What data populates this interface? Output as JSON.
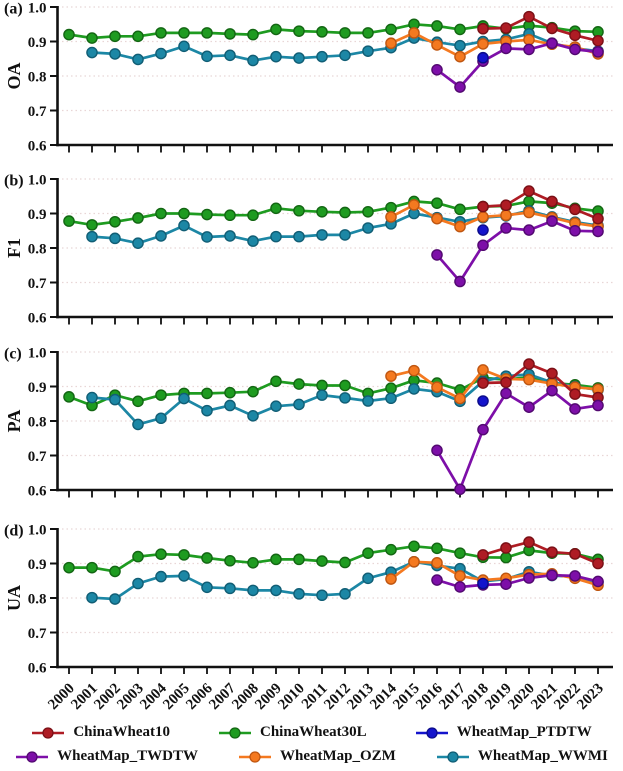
{
  "figure": {
    "background": "#ffffff",
    "axis_color": "#111111",
    "gridline_color": "#e8d6d6",
    "y_ticks": [
      "1.0",
      "0.9",
      "0.8",
      "0.7",
      "0.6"
    ],
    "years": [
      "2000",
      "2001",
      "2002",
      "2003",
      "2004",
      "2005",
      "2006",
      "2007",
      "2008",
      "2009",
      "2010",
      "2011",
      "2012",
      "2013",
      "2014",
      "2015",
      "2016",
      "2017",
      "2018",
      "2019",
      "2020",
      "2021",
      "2022",
      "2023"
    ]
  },
  "series_meta": [
    {
      "name": "ChinaWheat10",
      "color": "#ae1c24",
      "edge": "#7a1016"
    },
    {
      "name": "ChinaWheat30L",
      "color": "#1e9b20",
      "edge": "#136613"
    },
    {
      "name": "WheatMap_PTDTW",
      "color": "#1414cc",
      "edge": "#0c0c8a"
    },
    {
      "name": "WheatMap_TWDTW",
      "color": "#7d0fa8",
      "edge": "#520970"
    },
    {
      "name": "WheatMap_OZM",
      "color": "#f47920",
      "edge": "#bf5611"
    },
    {
      "name": "WheatMap_WWMI",
      "color": "#1c87a5",
      "edge": "#115e75"
    }
  ],
  "legend": {
    "rows": [
      [
        "ChinaWheat10",
        "ChinaWheat30L",
        "WheatMap_PTDTW"
      ],
      [
        "WheatMap_TWDTW",
        "WheatMap_OZM",
        "WheatMap_WWMI"
      ]
    ]
  },
  "draw_order": [
    "ChinaWheat30L",
    "WheatMap_WWMI",
    "WheatMap_OZM",
    "ChinaWheat10",
    "WheatMap_TWDTW",
    "WheatMap_PTDTW"
  ],
  "chart_data": [
    {
      "type": "line",
      "title": "(a)",
      "ylabel": "OA",
      "ylim": [
        0.6,
        1.0
      ],
      "grid": "dotted-horizontal",
      "legend_position": "bottom",
      "x": [
        2000,
        2001,
        2002,
        2003,
        2004,
        2005,
        2006,
        2007,
        2008,
        2009,
        2010,
        2011,
        2012,
        2013,
        2014,
        2015,
        2016,
        2017,
        2018,
        2019,
        2020,
        2021,
        2022,
        2023
      ],
      "series": [
        {
          "name": "ChinaWheat10",
          "values": [
            null,
            null,
            null,
            null,
            null,
            null,
            null,
            null,
            null,
            null,
            null,
            null,
            null,
            null,
            null,
            null,
            null,
            null,
            0.937,
            0.939,
            0.972,
            0.938,
            0.918,
            0.902
          ]
        },
        {
          "name": "ChinaWheat30L",
          "values": [
            0.92,
            0.91,
            0.915,
            0.915,
            0.925,
            0.925,
            0.925,
            0.922,
            0.92,
            0.935,
            0.93,
            0.928,
            0.925,
            0.925,
            0.935,
            0.95,
            0.945,
            0.935,
            0.945,
            0.937,
            0.946,
            0.94,
            0.93,
            0.928
          ]
        },
        {
          "name": "WheatMap_PTDTW",
          "values": [
            null,
            null,
            null,
            null,
            null,
            null,
            null,
            null,
            null,
            null,
            null,
            null,
            null,
            null,
            null,
            null,
            null,
            null,
            0.853,
            null,
            null,
            null,
            null,
            null
          ]
        },
        {
          "name": "WheatMap_TWDTW",
          "values": [
            null,
            null,
            null,
            null,
            null,
            null,
            null,
            null,
            null,
            null,
            null,
            null,
            null,
            null,
            null,
            null,
            0.818,
            0.768,
            0.843,
            0.88,
            0.877,
            0.895,
            0.877,
            0.87
          ]
        },
        {
          "name": "WheatMap_OZM",
          "values": [
            null,
            null,
            null,
            null,
            null,
            null,
            null,
            null,
            null,
            null,
            null,
            null,
            null,
            null,
            0.895,
            0.925,
            0.89,
            0.856,
            0.893,
            0.9,
            0.905,
            0.892,
            0.884,
            0.864
          ]
        },
        {
          "name": "WheatMap_WWMI",
          "values": [
            null,
            0.868,
            0.864,
            0.848,
            0.865,
            0.886,
            0.857,
            0.86,
            0.845,
            0.856,
            0.852,
            0.856,
            0.86,
            0.872,
            0.882,
            0.91,
            0.898,
            0.888,
            0.9,
            0.906,
            0.922,
            0.895,
            0.88,
            0.872
          ]
        }
      ]
    },
    {
      "type": "line",
      "title": "(b)",
      "ylabel": "F1",
      "ylim": [
        0.6,
        1.0
      ],
      "grid": "dotted-horizontal",
      "legend_position": "bottom",
      "x": [
        2000,
        2001,
        2002,
        2003,
        2004,
        2005,
        2006,
        2007,
        2008,
        2009,
        2010,
        2011,
        2012,
        2013,
        2014,
        2015,
        2016,
        2017,
        2018,
        2019,
        2020,
        2021,
        2022,
        2023
      ],
      "series": [
        {
          "name": "ChinaWheat10",
          "values": [
            null,
            null,
            null,
            null,
            null,
            null,
            null,
            null,
            null,
            null,
            null,
            null,
            null,
            null,
            null,
            null,
            null,
            null,
            0.92,
            0.924,
            0.965,
            0.935,
            0.912,
            0.885
          ]
        },
        {
          "name": "ChinaWheat30L",
          "values": [
            0.878,
            0.867,
            0.876,
            0.887,
            0.9,
            0.9,
            0.897,
            0.895,
            0.895,
            0.915,
            0.908,
            0.905,
            0.903,
            0.905,
            0.917,
            0.935,
            0.93,
            0.912,
            0.92,
            0.922,
            0.935,
            0.93,
            0.915,
            0.907
          ]
        },
        {
          "name": "WheatMap_PTDTW",
          "values": [
            null,
            null,
            null,
            null,
            null,
            null,
            null,
            null,
            null,
            null,
            null,
            null,
            null,
            null,
            null,
            null,
            null,
            null,
            0.852,
            null,
            null,
            null,
            null,
            null
          ]
        },
        {
          "name": "WheatMap_TWDTW",
          "values": [
            null,
            null,
            null,
            null,
            null,
            null,
            null,
            null,
            null,
            null,
            null,
            null,
            null,
            null,
            null,
            null,
            0.78,
            0.703,
            0.808,
            0.858,
            0.852,
            0.878,
            0.85,
            0.848
          ]
        },
        {
          "name": "WheatMap_OZM",
          "values": [
            null,
            null,
            null,
            null,
            null,
            null,
            null,
            null,
            null,
            null,
            null,
            null,
            null,
            null,
            0.89,
            0.925,
            0.885,
            0.862,
            0.89,
            0.895,
            0.903,
            0.888,
            0.872,
            0.862
          ]
        },
        {
          "name": "WheatMap_WWMI",
          "values": [
            null,
            0.833,
            0.828,
            0.814,
            0.835,
            0.865,
            0.832,
            0.835,
            0.82,
            0.833,
            0.833,
            0.838,
            0.838,
            0.858,
            0.87,
            0.9,
            0.888,
            0.876,
            0.888,
            0.893,
            0.908,
            0.89,
            0.875,
            0.865
          ]
        }
      ]
    },
    {
      "type": "line",
      "title": "(c)",
      "ylabel": "PA",
      "ylim": [
        0.6,
        1.0
      ],
      "grid": "dotted-horizontal",
      "legend_position": "bottom",
      "x": [
        2000,
        2001,
        2002,
        2003,
        2004,
        2005,
        2006,
        2007,
        2008,
        2009,
        2010,
        2011,
        2012,
        2013,
        2014,
        2015,
        2016,
        2017,
        2018,
        2019,
        2020,
        2021,
        2022,
        2023
      ],
      "series": [
        {
          "name": "ChinaWheat10",
          "values": [
            null,
            null,
            null,
            null,
            null,
            null,
            null,
            null,
            null,
            null,
            null,
            null,
            null,
            null,
            null,
            null,
            null,
            null,
            0.91,
            0.912,
            0.965,
            0.938,
            0.878,
            0.868
          ]
        },
        {
          "name": "ChinaWheat30L",
          "values": [
            0.87,
            0.845,
            0.875,
            0.857,
            0.875,
            0.88,
            0.88,
            0.882,
            0.885,
            0.915,
            0.907,
            0.903,
            0.903,
            0.88,
            0.895,
            0.918,
            0.91,
            0.89,
            0.925,
            0.92,
            0.927,
            0.91,
            0.905,
            0.896
          ]
        },
        {
          "name": "WheatMap_PTDTW",
          "values": [
            null,
            null,
            null,
            null,
            null,
            null,
            null,
            null,
            null,
            null,
            null,
            null,
            null,
            null,
            null,
            null,
            null,
            null,
            0.858,
            null,
            null,
            null,
            null,
            null
          ]
        },
        {
          "name": "WheatMap_TWDTW",
          "values": [
            null,
            null,
            null,
            null,
            null,
            null,
            null,
            null,
            null,
            null,
            null,
            null,
            null,
            null,
            null,
            null,
            0.715,
            0.602,
            0.775,
            0.88,
            0.84,
            0.888,
            0.835,
            0.845
          ]
        },
        {
          "name": "WheatMap_OZM",
          "values": [
            null,
            null,
            null,
            null,
            null,
            null,
            null,
            null,
            null,
            null,
            null,
            null,
            null,
            null,
            0.93,
            0.946,
            0.898,
            0.865,
            0.948,
            0.922,
            0.92,
            0.908,
            0.898,
            0.892
          ]
        },
        {
          "name": "WheatMap_WWMI",
          "values": [
            null,
            0.868,
            0.862,
            0.79,
            0.808,
            0.865,
            0.83,
            0.845,
            0.815,
            0.843,
            0.848,
            0.875,
            0.867,
            0.858,
            0.866,
            0.893,
            0.885,
            0.857,
            0.915,
            0.93,
            0.935,
            0.912,
            0.9,
            0.89
          ]
        }
      ]
    },
    {
      "type": "line",
      "title": "(d)",
      "ylabel": "UA",
      "ylim": [
        0.6,
        1.0
      ],
      "grid": "dotted-horizontal",
      "legend_position": "bottom",
      "x": [
        2000,
        2001,
        2002,
        2003,
        2004,
        2005,
        2006,
        2007,
        2008,
        2009,
        2010,
        2011,
        2012,
        2013,
        2014,
        2015,
        2016,
        2017,
        2018,
        2019,
        2020,
        2021,
        2022,
        2023
      ],
      "series": [
        {
          "name": "ChinaWheat10",
          "values": [
            null,
            null,
            null,
            null,
            null,
            null,
            null,
            null,
            null,
            null,
            null,
            null,
            null,
            null,
            null,
            null,
            null,
            null,
            0.925,
            0.945,
            0.962,
            0.933,
            0.928,
            0.9
          ]
        },
        {
          "name": "ChinaWheat30L",
          "values": [
            0.888,
            0.888,
            0.877,
            0.92,
            0.927,
            0.925,
            0.916,
            0.908,
            0.902,
            0.912,
            0.912,
            0.907,
            0.903,
            0.93,
            0.94,
            0.95,
            0.944,
            0.93,
            0.918,
            0.917,
            0.938,
            0.93,
            0.928,
            0.912
          ]
        },
        {
          "name": "WheatMap_PTDTW",
          "values": [
            null,
            null,
            null,
            null,
            null,
            null,
            null,
            null,
            null,
            null,
            null,
            null,
            null,
            null,
            null,
            null,
            null,
            null,
            0.842,
            null,
            null,
            null,
            null,
            null
          ]
        },
        {
          "name": "WheatMap_TWDTW",
          "values": [
            null,
            null,
            null,
            null,
            null,
            null,
            null,
            null,
            null,
            null,
            null,
            null,
            null,
            null,
            null,
            null,
            0.852,
            0.832,
            0.838,
            0.84,
            0.858,
            0.866,
            0.864,
            0.848
          ]
        },
        {
          "name": "WheatMap_OZM",
          "values": [
            null,
            null,
            null,
            null,
            null,
            null,
            null,
            null,
            null,
            null,
            null,
            null,
            null,
            null,
            0.855,
            0.905,
            0.902,
            0.864,
            0.852,
            0.857,
            0.868,
            0.87,
            0.857,
            0.837
          ]
        },
        {
          "name": "WheatMap_WWMI",
          "values": [
            null,
            0.801,
            0.797,
            0.842,
            0.862,
            0.864,
            0.831,
            0.828,
            0.822,
            0.822,
            0.812,
            0.808,
            0.812,
            0.857,
            0.875,
            0.905,
            0.894,
            0.885,
            0.848,
            0.855,
            0.876,
            0.865,
            0.862,
            0.845
          ]
        }
      ]
    }
  ]
}
